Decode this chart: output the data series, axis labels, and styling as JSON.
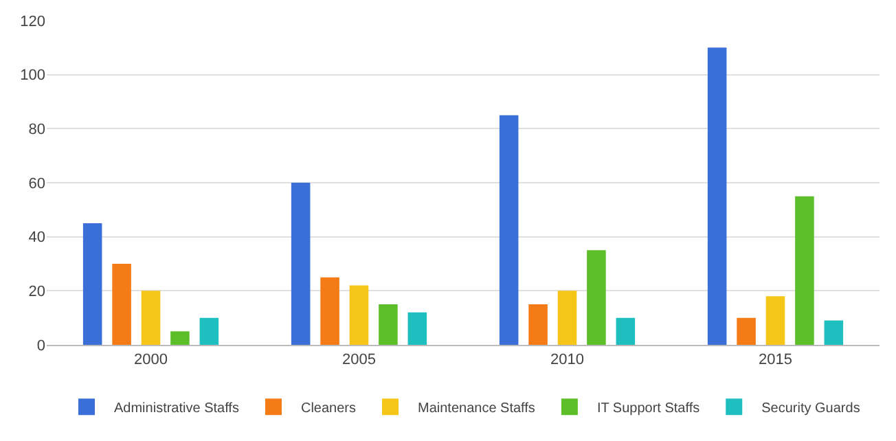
{
  "chart_data": {
    "type": "bar",
    "categories": [
      "2000",
      "2005",
      "2010",
      "2015"
    ],
    "series": [
      {
        "name": "Administrative Staffs",
        "color": "#3a6fd8",
        "values": [
          45,
          60,
          85,
          110
        ]
      },
      {
        "name": "Cleaners",
        "color": "#f47b16",
        "values": [
          30,
          25,
          15,
          10
        ]
      },
      {
        "name": "Maintenance Staffs",
        "color": "#f5c518",
        "values": [
          20,
          22,
          20,
          18
        ]
      },
      {
        "name": "IT Support Staffs",
        "color": "#5cbf2a",
        "values": [
          5,
          15,
          35,
          55
        ]
      },
      {
        "name": "Security Guards",
        "color": "#1fbfbf",
        "values": [
          10,
          12,
          10,
          9
        ]
      }
    ],
    "ylim": [
      0,
      120
    ],
    "yticks": [
      0,
      20,
      40,
      60,
      80,
      100,
      120
    ],
    "grid": "y",
    "legend": "bottom"
  }
}
